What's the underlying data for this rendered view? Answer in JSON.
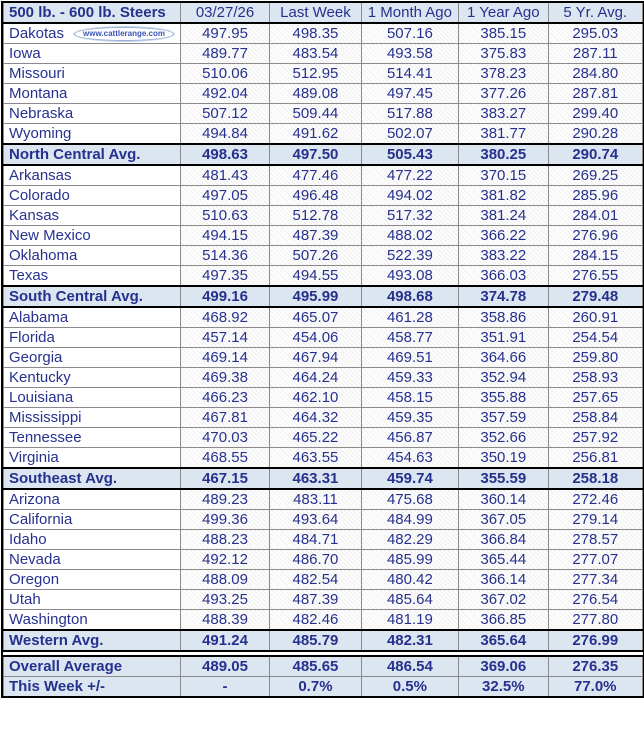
{
  "colors": {
    "text_navy": "#26318e",
    "band_blue": "#dce6f1",
    "section_border": "#000000",
    "grid_gray": "#8a8a8a",
    "logo_ring_blue": "#9ab1d6"
  },
  "logo": {
    "text": "www.cattlerange.com"
  },
  "chart_data": {
    "type": "table",
    "title": "500 lb. - 600 lb.  Steers",
    "columns": [
      "03/27/26",
      "Last Week",
      "1 Month Ago",
      "1 Year Ago",
      "5 Yr. Avg."
    ],
    "rows": [
      {
        "kind": "state",
        "label": "Dakotas",
        "logo": true,
        "values": [
          "497.95",
          "498.35",
          "507.16",
          "385.15",
          "295.03"
        ]
      },
      {
        "kind": "state",
        "label": "Iowa",
        "logo": false,
        "values": [
          "489.77",
          "483.54",
          "493.58",
          "375.83",
          "287.11"
        ]
      },
      {
        "kind": "state",
        "label": "Missouri",
        "logo": false,
        "values": [
          "510.06",
          "512.95",
          "514.41",
          "378.23",
          "284.80"
        ]
      },
      {
        "kind": "state",
        "label": "Montana",
        "logo": false,
        "values": [
          "492.04",
          "489.08",
          "497.45",
          "377.26",
          "287.81"
        ]
      },
      {
        "kind": "state",
        "label": "Nebraska",
        "logo": false,
        "values": [
          "507.12",
          "509.44",
          "517.88",
          "383.27",
          "299.40"
        ]
      },
      {
        "kind": "state",
        "label": "Wyoming",
        "logo": false,
        "values": [
          "494.84",
          "491.62",
          "502.07",
          "381.77",
          "290.28"
        ]
      },
      {
        "kind": "region",
        "label": "North Central Avg.",
        "logo": false,
        "values": [
          "498.63",
          "497.50",
          "505.43",
          "380.25",
          "290.74"
        ]
      },
      {
        "kind": "state",
        "label": "Arkansas",
        "logo": false,
        "values": [
          "481.43",
          "477.46",
          "477.22",
          "370.15",
          "269.25"
        ]
      },
      {
        "kind": "state",
        "label": "Colorado",
        "logo": false,
        "values": [
          "497.05",
          "496.48",
          "494.02",
          "381.82",
          "285.96"
        ]
      },
      {
        "kind": "state",
        "label": "Kansas",
        "logo": false,
        "values": [
          "510.63",
          "512.78",
          "517.32",
          "381.24",
          "284.01"
        ]
      },
      {
        "kind": "state",
        "label": "New Mexico",
        "logo": false,
        "values": [
          "494.15",
          "487.39",
          "488.02",
          "366.22",
          "276.96"
        ]
      },
      {
        "kind": "state",
        "label": "Oklahoma",
        "logo": false,
        "values": [
          "514.36",
          "507.26",
          "522.39",
          "383.22",
          "284.15"
        ]
      },
      {
        "kind": "state",
        "label": "Texas",
        "logo": false,
        "values": [
          "497.35",
          "494.55",
          "493.08",
          "366.03",
          "276.55"
        ]
      },
      {
        "kind": "region",
        "label": "South Central Avg.",
        "logo": false,
        "values": [
          "499.16",
          "495.99",
          "498.68",
          "374.78",
          "279.48"
        ]
      },
      {
        "kind": "state",
        "label": "Alabama",
        "logo": false,
        "values": [
          "468.92",
          "465.07",
          "461.28",
          "358.86",
          "260.91"
        ]
      },
      {
        "kind": "state",
        "label": "Florida",
        "logo": false,
        "values": [
          "457.14",
          "454.06",
          "458.77",
          "351.91",
          "254.54"
        ]
      },
      {
        "kind": "state",
        "label": "Georgia",
        "logo": false,
        "values": [
          "469.14",
          "467.94",
          "469.51",
          "364.66",
          "259.80"
        ]
      },
      {
        "kind": "state",
        "label": "Kentucky",
        "logo": false,
        "values": [
          "469.38",
          "464.24",
          "459.33",
          "352.94",
          "258.93"
        ]
      },
      {
        "kind": "state",
        "label": "Louisiana",
        "logo": false,
        "values": [
          "466.23",
          "462.10",
          "458.15",
          "355.88",
          "257.65"
        ]
      },
      {
        "kind": "state",
        "label": "Mississippi",
        "logo": false,
        "values": [
          "467.81",
          "464.32",
          "459.35",
          "357.59",
          "258.84"
        ]
      },
      {
        "kind": "state",
        "label": "Tennessee",
        "logo": false,
        "values": [
          "470.03",
          "465.22",
          "456.87",
          "352.66",
          "257.92"
        ]
      },
      {
        "kind": "state",
        "label": "Virginia",
        "logo": false,
        "values": [
          "468.55",
          "463.55",
          "454.63",
          "350.19",
          "256.81"
        ]
      },
      {
        "kind": "region",
        "label": "Southeast Avg.",
        "logo": false,
        "values": [
          "467.15",
          "463.31",
          "459.74",
          "355.59",
          "258.18"
        ]
      },
      {
        "kind": "state",
        "label": "Arizona",
        "logo": false,
        "values": [
          "489.23",
          "483.11",
          "475.68",
          "360.14",
          "272.46"
        ]
      },
      {
        "kind": "state",
        "label": "California",
        "logo": false,
        "values": [
          "499.36",
          "493.64",
          "484.99",
          "367.05",
          "279.14"
        ]
      },
      {
        "kind": "state",
        "label": "Idaho",
        "logo": false,
        "values": [
          "488.23",
          "484.71",
          "482.29",
          "366.84",
          "278.57"
        ]
      },
      {
        "kind": "state",
        "label": "Nevada",
        "logo": false,
        "values": [
          "492.12",
          "486.70",
          "485.99",
          "365.44",
          "277.07"
        ]
      },
      {
        "kind": "state",
        "label": "Oregon",
        "logo": false,
        "values": [
          "488.09",
          "482.54",
          "480.42",
          "366.14",
          "277.34"
        ]
      },
      {
        "kind": "state",
        "label": "Utah",
        "logo": false,
        "values": [
          "493.25",
          "487.39",
          "485.64",
          "367.02",
          "276.54"
        ]
      },
      {
        "kind": "state",
        "label": "Washington",
        "logo": false,
        "values": [
          "488.39",
          "482.46",
          "481.19",
          "366.85",
          "277.80"
        ]
      },
      {
        "kind": "region",
        "label": "Western Avg.",
        "logo": false,
        "values": [
          "491.24",
          "485.79",
          "482.31",
          "365.64",
          "276.99"
        ]
      },
      {
        "kind": "overall",
        "label": "Overall Average",
        "logo": false,
        "values": [
          "489.05",
          "485.65",
          "486.54",
          "369.06",
          "276.35"
        ]
      },
      {
        "kind": "change",
        "label": "This Week +/-",
        "logo": false,
        "values": [
          "-",
          "0.7%",
          "0.5%",
          "32.5%",
          "77.0%"
        ]
      }
    ]
  }
}
